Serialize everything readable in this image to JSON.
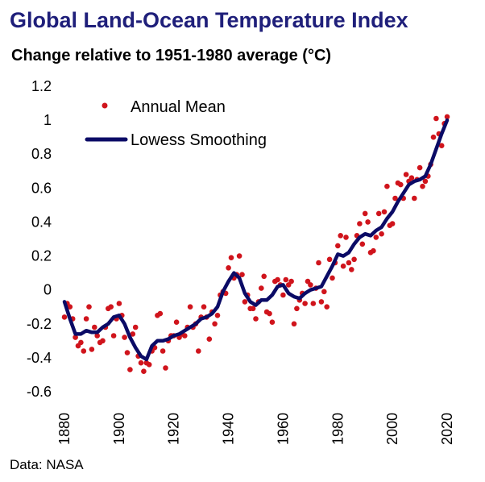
{
  "title": "Global Land-Ocean Temperature Index",
  "subtitle": "Change relative to 1951-1980 average (°C)",
  "source": "Data: NASA",
  "colors": {
    "title": "#1f1f7a",
    "annual": "#d0141c",
    "smooth": "#0b0b66"
  },
  "chart_data": {
    "type": "scatter",
    "title": "Global Land-Ocean Temperature Index",
    "subtitle": "Change relative to 1951-1980 average (°C)",
    "xlabel": "",
    "ylabel": "",
    "xlim": [
      1880,
      2020
    ],
    "ylim": [
      -0.6,
      1.2
    ],
    "xticks": [
      1880,
      1900,
      1920,
      1940,
      1960,
      1980,
      2000,
      2020
    ],
    "yticks": [
      -0.6,
      -0.4,
      -0.2,
      0,
      0.2,
      0.4,
      0.6,
      0.8,
      1,
      1.2
    ],
    "grid": false,
    "legend_position": "top-left",
    "series": [
      {
        "name": "Annual Mean",
        "kind": "points",
        "x": [
          1880,
          1881,
          1882,
          1883,
          1884,
          1885,
          1886,
          1887,
          1888,
          1889,
          1890,
          1891,
          1892,
          1893,
          1894,
          1895,
          1896,
          1897,
          1898,
          1899,
          1900,
          1901,
          1902,
          1903,
          1904,
          1905,
          1906,
          1907,
          1908,
          1909,
          1910,
          1911,
          1912,
          1913,
          1914,
          1915,
          1916,
          1917,
          1918,
          1919,
          1920,
          1921,
          1922,
          1923,
          1924,
          1925,
          1926,
          1927,
          1928,
          1929,
          1930,
          1931,
          1932,
          1933,
          1934,
          1935,
          1936,
          1937,
          1938,
          1939,
          1940,
          1941,
          1942,
          1943,
          1944,
          1945,
          1946,
          1947,
          1948,
          1949,
          1950,
          1951,
          1952,
          1953,
          1954,
          1955,
          1956,
          1957,
          1958,
          1959,
          1960,
          1961,
          1962,
          1963,
          1964,
          1965,
          1966,
          1967,
          1968,
          1969,
          1970,
          1971,
          1972,
          1973,
          1974,
          1975,
          1976,
          1977,
          1978,
          1979,
          1980,
          1981,
          1982,
          1983,
          1984,
          1985,
          1986,
          1987,
          1988,
          1989,
          1990,
          1991,
          1992,
          1993,
          1994,
          1995,
          1996,
          1997,
          1998,
          1999,
          2000,
          2001,
          2002,
          2003,
          2004,
          2005,
          2006,
          2007,
          2008,
          2009,
          2010,
          2011,
          2012,
          2013,
          2014,
          2015,
          2016,
          2017,
          2018,
          2019,
          2020
        ],
        "y": [
          -0.16,
          -0.08,
          -0.1,
          -0.17,
          -0.28,
          -0.33,
          -0.31,
          -0.36,
          -0.17,
          -0.1,
          -0.35,
          -0.22,
          -0.27,
          -0.31,
          -0.3,
          -0.22,
          -0.11,
          -0.1,
          -0.27,
          -0.17,
          -0.08,
          -0.15,
          -0.28,
          -0.37,
          -0.47,
          -0.26,
          -0.22,
          -0.39,
          -0.43,
          -0.48,
          -0.43,
          -0.44,
          -0.36,
          -0.34,
          -0.15,
          -0.14,
          -0.36,
          -0.46,
          -0.3,
          -0.27,
          -0.27,
          -0.19,
          -0.28,
          -0.26,
          -0.27,
          -0.22,
          -0.1,
          -0.22,
          -0.2,
          -0.36,
          -0.16,
          -0.1,
          -0.16,
          -0.29,
          -0.13,
          -0.2,
          -0.15,
          -0.03,
          -0.01,
          -0.02,
          0.13,
          0.19,
          0.07,
          0.09,
          0.2,
          0.09,
          -0.07,
          -0.03,
          -0.11,
          -0.11,
          -0.17,
          -0.07,
          0.01,
          0.08,
          -0.13,
          -0.14,
          -0.19,
          0.05,
          0.06,
          0.03,
          -0.03,
          0.06,
          0.03,
          0.05,
          -0.2,
          -0.11,
          -0.06,
          -0.02,
          -0.08,
          0.05,
          0.03,
          -0.08,
          0.01,
          0.16,
          -0.07,
          -0.01,
          -0.1,
          0.18,
          0.07,
          0.16,
          0.26,
          0.32,
          0.14,
          0.31,
          0.16,
          0.12,
          0.18,
          0.32,
          0.39,
          0.27,
          0.45,
          0.4,
          0.22,
          0.23,
          0.31,
          0.45,
          0.33,
          0.46,
          0.61,
          0.38,
          0.39,
          0.54,
          0.63,
          0.62,
          0.54,
          0.68,
          0.64,
          0.66,
          0.54,
          0.65,
          0.72,
          0.61,
          0.64,
          0.67,
          0.74,
          0.9,
          1.01,
          0.92,
          0.85,
          0.98,
          1.02
        ]
      },
      {
        "name": "Lowess Smoothing",
        "kind": "line",
        "x": [
          1880,
          1882,
          1884,
          1886,
          1888,
          1890,
          1892,
          1894,
          1896,
          1898,
          1900,
          1902,
          1904,
          1906,
          1908,
          1910,
          1912,
          1914,
          1916,
          1918,
          1920,
          1922,
          1924,
          1926,
          1928,
          1930,
          1932,
          1934,
          1936,
          1938,
          1940,
          1942,
          1944,
          1946,
          1948,
          1950,
          1952,
          1954,
          1956,
          1958,
          1960,
          1962,
          1964,
          1966,
          1968,
          1970,
          1972,
          1974,
          1976,
          1978,
          1980,
          1982,
          1984,
          1986,
          1988,
          1990,
          1992,
          1994,
          1996,
          1998,
          2000,
          2002,
          2004,
          2006,
          2008,
          2010,
          2012,
          2014,
          2016,
          2018,
          2020
        ],
        "y": [
          -0.07,
          -0.17,
          -0.26,
          -0.26,
          -0.24,
          -0.25,
          -0.25,
          -0.22,
          -0.2,
          -0.16,
          -0.15,
          -0.2,
          -0.28,
          -0.34,
          -0.39,
          -0.41,
          -0.33,
          -0.3,
          -0.3,
          -0.29,
          -0.27,
          -0.26,
          -0.24,
          -0.22,
          -0.2,
          -0.17,
          -0.16,
          -0.14,
          -0.1,
          -0.01,
          0.05,
          0.1,
          0.07,
          -0.02,
          -0.07,
          -0.09,
          -0.06,
          -0.06,
          -0.03,
          0.02,
          0.03,
          -0.02,
          -0.04,
          -0.05,
          -0.02,
          0.0,
          0.01,
          0.02,
          0.08,
          0.14,
          0.21,
          0.2,
          0.22,
          0.27,
          0.31,
          0.33,
          0.32,
          0.35,
          0.37,
          0.42,
          0.46,
          0.52,
          0.57,
          0.62,
          0.64,
          0.65,
          0.67,
          0.74,
          0.83,
          0.92,
          1.0
        ]
      }
    ]
  }
}
